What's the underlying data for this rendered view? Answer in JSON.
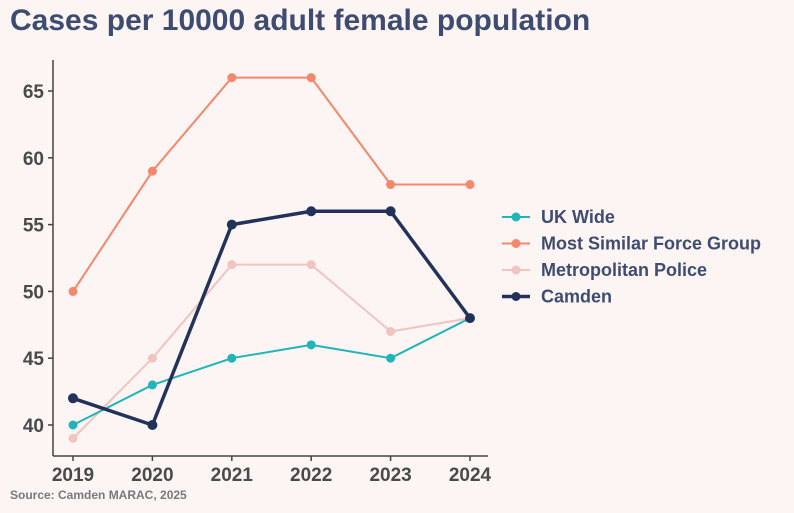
{
  "chart_data": {
    "type": "line",
    "title": "Cases per 10000 adult female population",
    "source": "Source: Camden MARAC, 2025",
    "x": [
      "2019",
      "2020",
      "2021",
      "2022",
      "2023",
      "2024"
    ],
    "yticks": [
      40,
      45,
      50,
      55,
      60,
      65
    ],
    "ylim": [
      37.7,
      67.4
    ],
    "xlabel": "",
    "ylabel": "",
    "grid": false,
    "legend": "right",
    "series": [
      {
        "name": "UK Wide",
        "color": "#22b5b8",
        "values": [
          40,
          43,
          45,
          46,
          45,
          48
        ]
      },
      {
        "name": "Most Similar Force Group",
        "color": "#f5876b",
        "values": [
          50,
          59,
          66,
          66,
          58,
          58
        ]
      },
      {
        "name": "Metropolitan Police",
        "color": "#f2c4c0",
        "values": [
          39,
          45,
          52,
          52,
          47,
          48
        ]
      },
      {
        "name": "Camden",
        "color": "#22325a",
        "values": [
          42,
          40,
          55,
          56,
          56,
          48
        ]
      }
    ]
  }
}
